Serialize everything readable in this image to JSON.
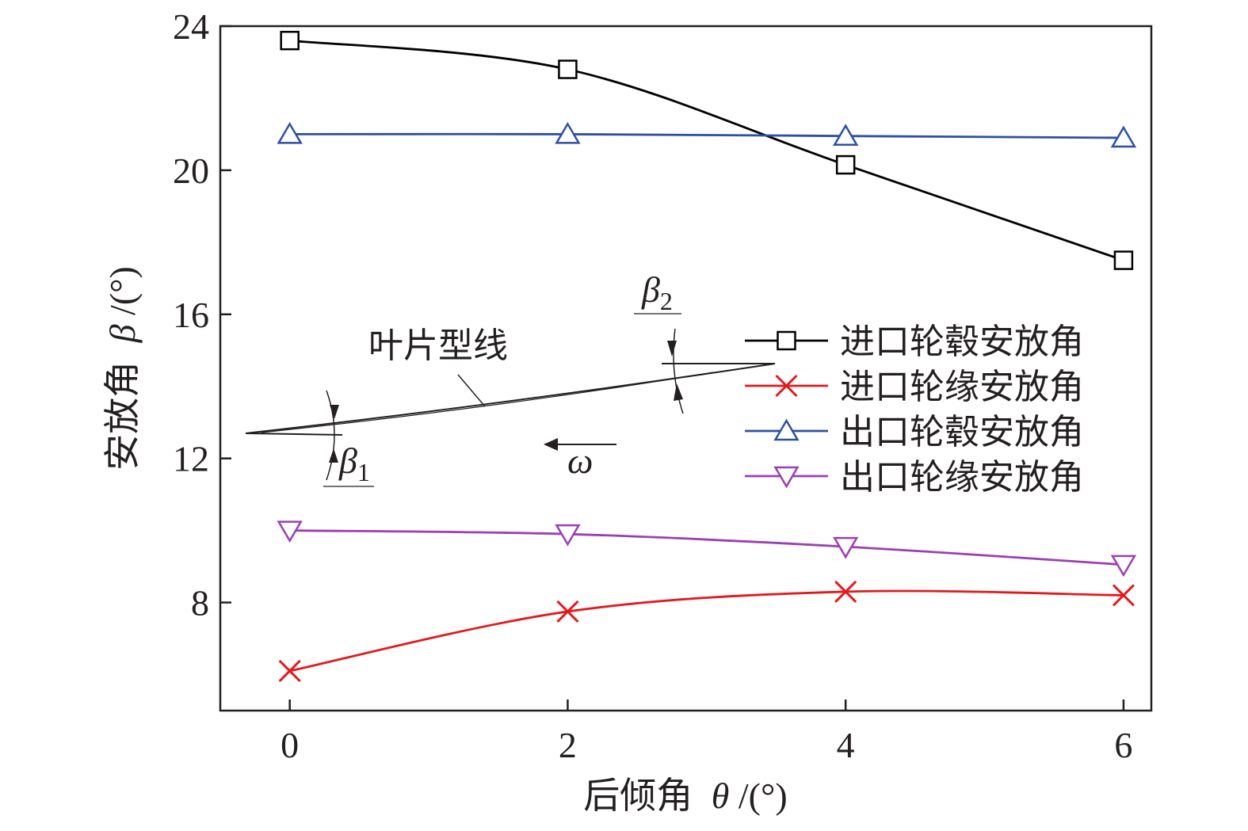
{
  "chart_data": {
    "type": "line",
    "xlabel": "后倾角",
    "xlabel_symbol": "θ",
    "xlabel_unit": "/(°)",
    "ylabel": "安放角",
    "ylabel_symbol": "β",
    "ylabel_unit": "/(°)",
    "xlim": [
      -0.5,
      6.2
    ],
    "ylim": [
      5,
      24
    ],
    "xticks": [
      0,
      2,
      4,
      6
    ],
    "yticks": [
      8,
      12,
      16,
      20,
      24
    ],
    "x": [
      0,
      2,
      4,
      6
    ],
    "grid": false,
    "legend_position": "center-right",
    "series": [
      {
        "name": "进口轮毂安放角",
        "marker": "square",
        "color": "#000000",
        "values": [
          23.6,
          22.8,
          20.15,
          17.5
        ]
      },
      {
        "name": "进口轮缘安放角",
        "marker": "x",
        "color": "#e31a1c",
        "values": [
          6.1,
          7.75,
          8.3,
          8.2
        ]
      },
      {
        "name": "出口轮毂安放角",
        "marker": "triangle-up",
        "color": "#2e4fa3",
        "values": [
          21.0,
          21.0,
          20.95,
          20.9
        ]
      },
      {
        "name": "出口轮缘安放角",
        "marker": "triangle-down",
        "color": "#9b3fb5",
        "values": [
          10.0,
          9.9,
          9.55,
          9.05
        ]
      }
    ],
    "inset": {
      "blade_label": "叶片型线",
      "beta1": "β",
      "beta1_sub": "1",
      "beta2": "β",
      "beta2_sub": "2",
      "omega": "ω"
    }
  }
}
